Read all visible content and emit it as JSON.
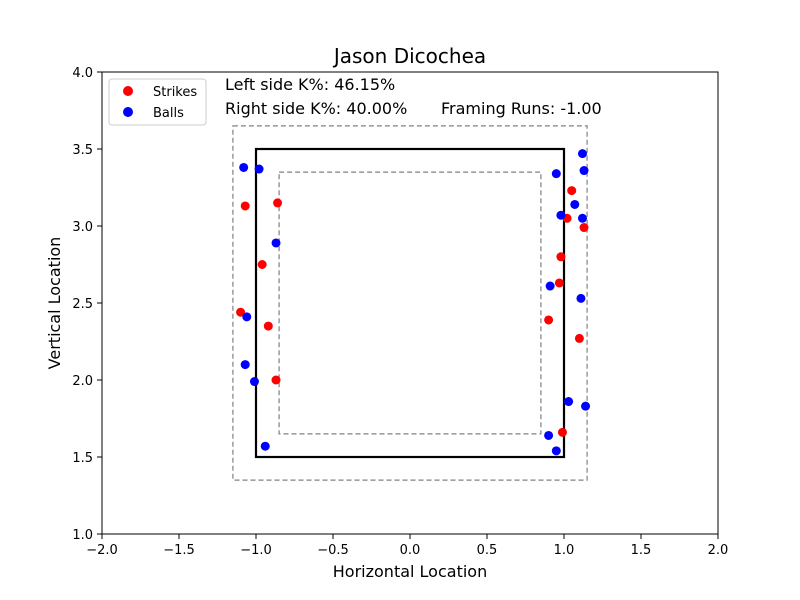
{
  "chart_data": {
    "type": "scatter",
    "title": "Jason Dicochea",
    "xlabel": "Horizontal Location",
    "ylabel": "Vertical Location",
    "xlim": [
      -2.0,
      2.0
    ],
    "ylim": [
      1.0,
      4.0
    ],
    "xticks": [
      "−2.0",
      "−1.5",
      "−1.0",
      "−0.5",
      "0.0",
      "0.5",
      "1.0",
      "1.5",
      "2.0"
    ],
    "xtick_values": [
      -2.0,
      -1.5,
      -1.0,
      -0.5,
      0.0,
      0.5,
      1.0,
      1.5,
      2.0
    ],
    "yticks": [
      "1.0",
      "1.5",
      "2.0",
      "2.5",
      "3.0",
      "3.5",
      "4.0"
    ],
    "ytick_values": [
      1.0,
      1.5,
      2.0,
      2.5,
      3.0,
      3.5,
      4.0
    ],
    "grid": false,
    "legend_position": "top-left",
    "annotations": {
      "left_k": "Left side K%: 46.15%",
      "right_k": "Right side K%: 40.00%",
      "framing": "Framing Runs: -1.00"
    },
    "zones": {
      "strike_zone": {
        "x": [
          -1.0,
          1.0
        ],
        "y": [
          1.5,
          3.5
        ],
        "style": "solid"
      },
      "outer_zone": {
        "x": [
          -1.15,
          1.15
        ],
        "y": [
          1.35,
          3.65
        ],
        "style": "dashed"
      },
      "inner_zone": {
        "x": [
          -0.85,
          0.85
        ],
        "y": [
          1.65,
          3.35
        ],
        "style": "dashed"
      }
    },
    "series": [
      {
        "name": "Strikes",
        "color": "#ff0000",
        "points": [
          [
            -1.07,
            3.13
          ],
          [
            -0.86,
            3.15
          ],
          [
            -0.96,
            2.75
          ],
          [
            -1.1,
            2.44
          ],
          [
            -0.92,
            2.35
          ],
          [
            -0.87,
            2.0
          ],
          [
            1.05,
            3.23
          ],
          [
            1.02,
            3.05
          ],
          [
            1.13,
            2.99
          ],
          [
            0.98,
            2.8
          ],
          [
            0.97,
            2.63
          ],
          [
            0.9,
            2.39
          ],
          [
            1.1,
            2.27
          ],
          [
            0.99,
            1.66
          ]
        ]
      },
      {
        "name": "Balls",
        "color": "#0000ff",
        "points": [
          [
            -1.08,
            3.38
          ],
          [
            -0.98,
            3.37
          ],
          [
            -0.87,
            2.89
          ],
          [
            -1.06,
            2.41
          ],
          [
            -1.07,
            2.1
          ],
          [
            -1.01,
            1.99
          ],
          [
            -0.94,
            1.57
          ],
          [
            1.12,
            3.47
          ],
          [
            0.95,
            3.34
          ],
          [
            1.13,
            3.36
          ],
          [
            1.07,
            3.14
          ],
          [
            0.98,
            3.07
          ],
          [
            1.12,
            3.05
          ],
          [
            0.91,
            2.61
          ],
          [
            1.11,
            2.53
          ],
          [
            1.03,
            1.86
          ],
          [
            1.14,
            1.83
          ],
          [
            0.9,
            1.64
          ],
          [
            0.95,
            1.54
          ]
        ]
      }
    ]
  }
}
